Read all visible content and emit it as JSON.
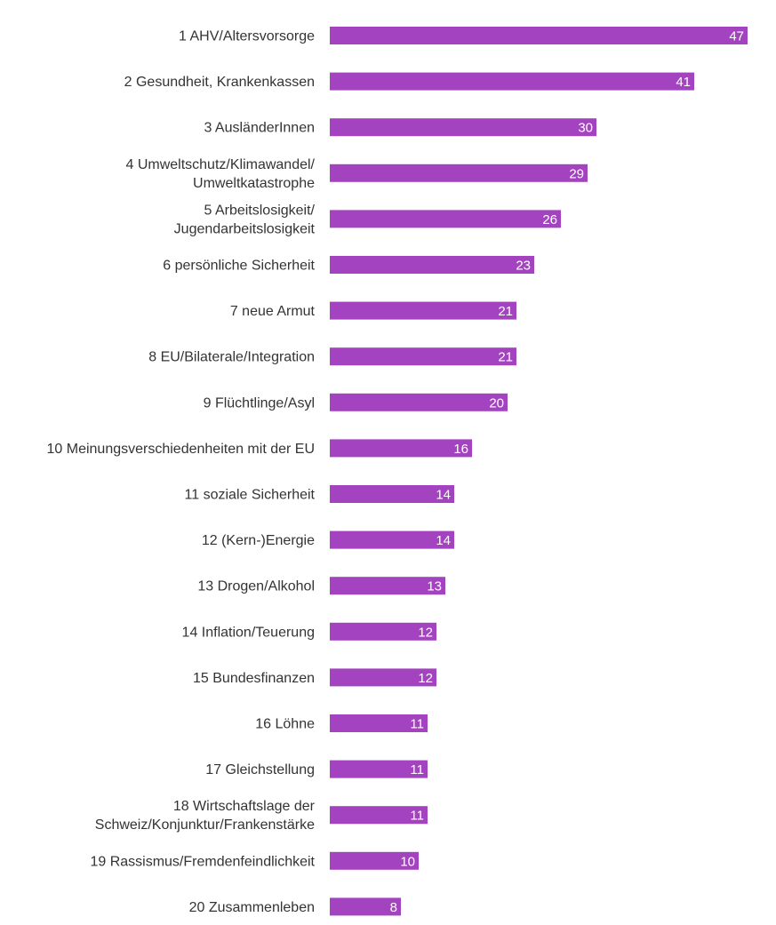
{
  "chart_data": {
    "type": "bar",
    "orientation": "horizontal",
    "title": "",
    "xlabel": "",
    "ylabel": "",
    "xlim": [
      0,
      47
    ],
    "grid": false,
    "legend": "none",
    "bar_color": "#a443c0",
    "value_label_color": "#ffffff",
    "categories": [
      "1 AHV/Altersvorsorge",
      "2 Gesundheit, Krankenkassen",
      "3 AusländerInnen",
      "4 Umweltschutz/Klimawandel/ Umweltkatastrophe",
      "5 Arbeitslosigkeit/ Jugendarbeitslosigkeit",
      "6 persönliche Sicherheit",
      "7 neue Armut",
      "8 EU/Bilaterale/Integration",
      "9 Flüchtlinge/Asyl",
      "10 Meinungsverschiedenheiten mit der EU",
      "11 soziale Sicherheit",
      "12 (Kern-)Energie",
      "13 Drogen/Alkohol",
      "14 Inflation/Teuerung",
      "15 Bundesfinanzen",
      "16 Löhne",
      "17 Gleichstellung",
      "18 Wirtschaftslage der Schweiz/Konjunktur/Frankenstärke",
      "19 Rassismus/Fremdenfeindlichkeit",
      "20 Zusammenleben"
    ],
    "category_lines": [
      [
        "1 AHV/Altersvorsorge"
      ],
      [
        "2 Gesundheit, Krankenkassen"
      ],
      [
        "3 AusländerInnen"
      ],
      [
        "4 Umweltschutz/Klimawandel/",
        "Umweltkatastrophe"
      ],
      [
        "5 Arbeitslosigkeit/",
        "Jugendarbeitslosigkeit"
      ],
      [
        "6 persönliche Sicherheit"
      ],
      [
        "7 neue Armut"
      ],
      [
        "8 EU/Bilaterale/Integration"
      ],
      [
        "9 Flüchtlinge/Asyl"
      ],
      [
        "10 Meinungsverschiedenheiten mit der EU"
      ],
      [
        "11 soziale Sicherheit"
      ],
      [
        "12 (Kern-)Energie"
      ],
      [
        "13 Drogen/Alkohol"
      ],
      [
        "14 Inflation/Teuerung"
      ],
      [
        "15 Bundesfinanzen"
      ],
      [
        "16 Löhne"
      ],
      [
        "17 Gleichstellung"
      ],
      [
        "18 Wirtschaftslage der",
        "Schweiz/Konjunktur/Frankenstärke"
      ],
      [
        "19 Rassismus/Fremdenfeindlichkeit"
      ],
      [
        "20 Zusammenleben"
      ]
    ],
    "values": [
      47,
      41,
      30,
      29,
      26,
      23,
      21,
      21,
      20,
      16,
      14,
      14,
      13,
      12,
      12,
      11,
      11,
      11,
      10,
      8
    ]
  }
}
